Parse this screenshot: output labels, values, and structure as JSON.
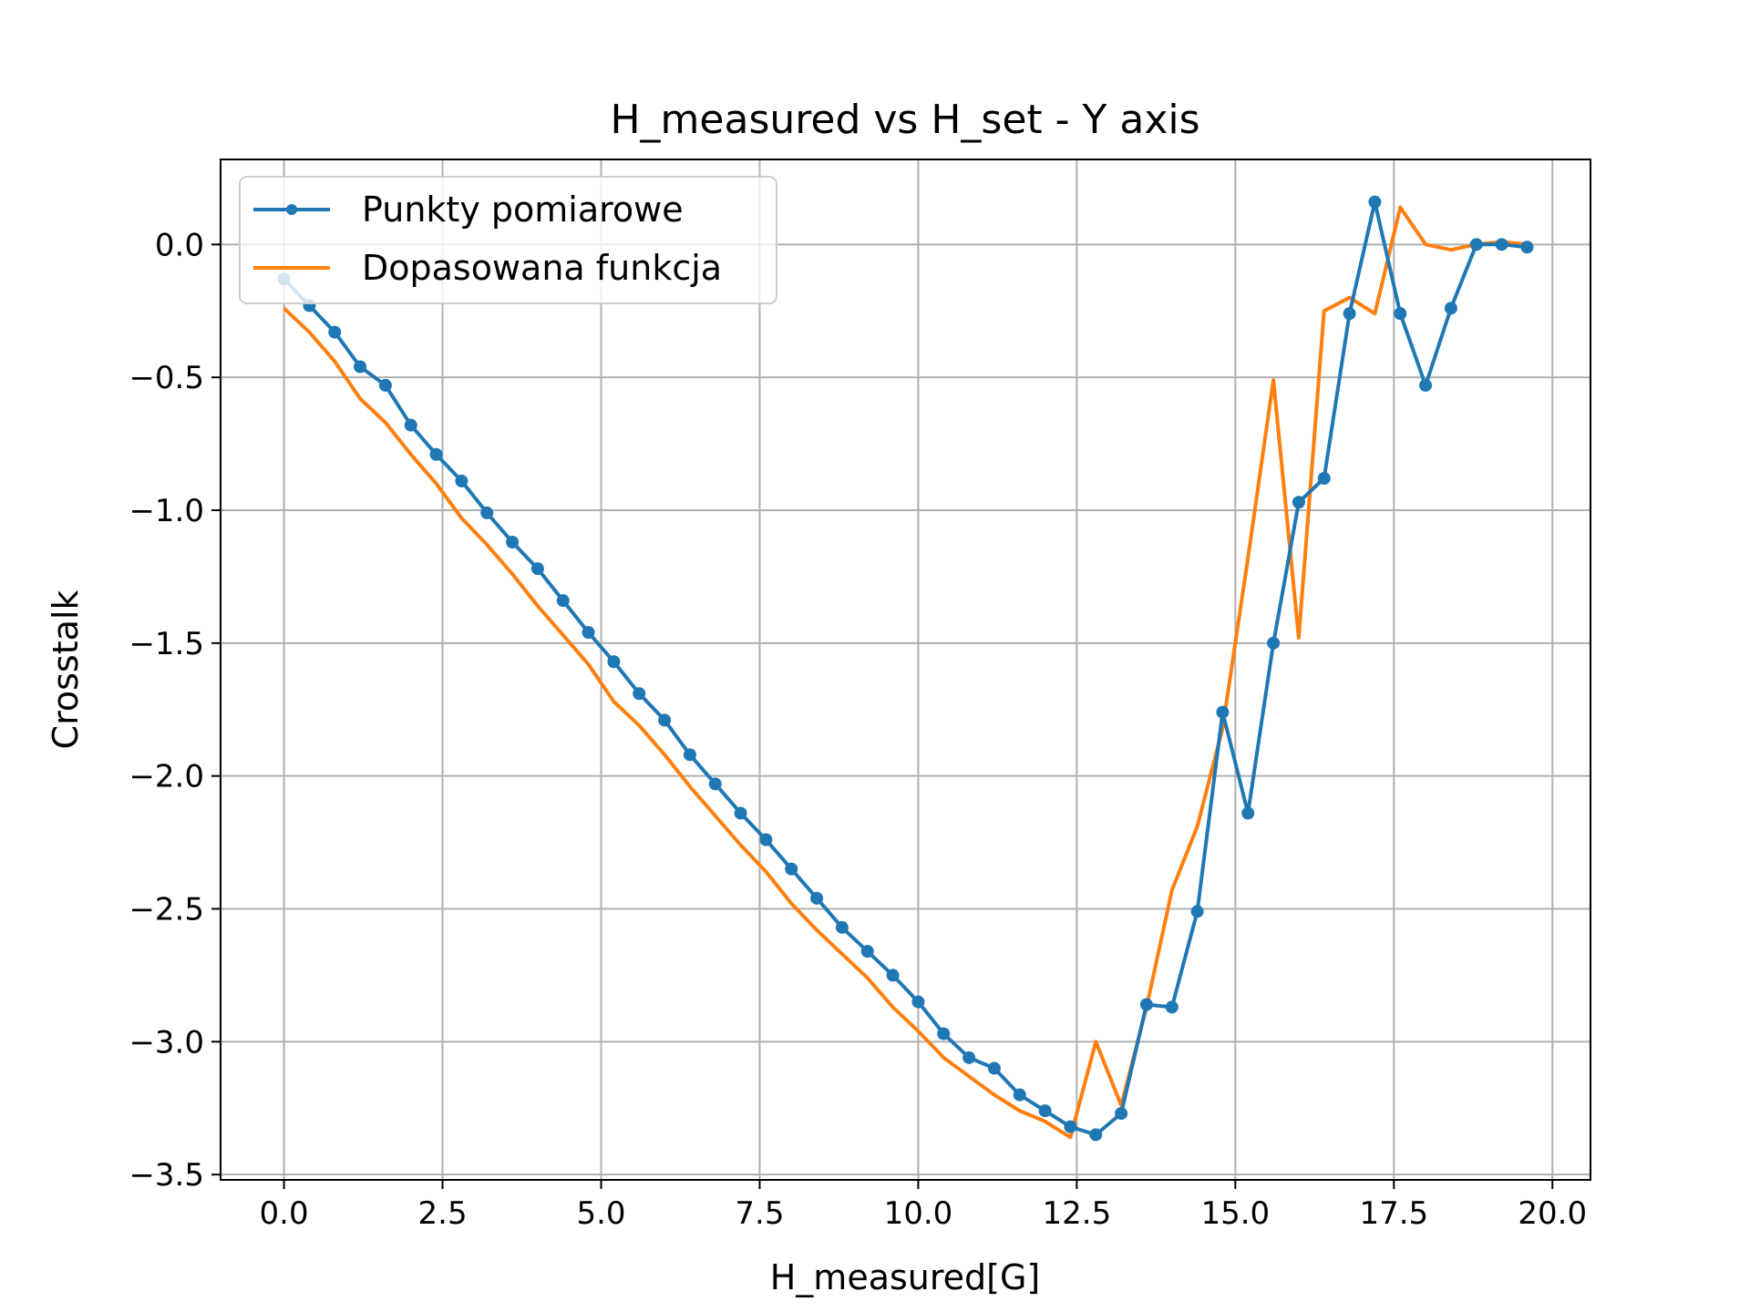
{
  "chart_data": {
    "type": "line",
    "title": "H_measured vs H_set - Y axis",
    "xlabel": "H_measured[G]",
    "ylabel": "Crosstalk",
    "xlim": [
      -1.0,
      20.6
    ],
    "ylim": [
      -3.52,
      0.32
    ],
    "xticks": [
      0.0,
      2.5,
      5.0,
      7.5,
      10.0,
      12.5,
      15.0,
      17.5,
      20.0
    ],
    "xtick_labels": [
      "0.0",
      "2.5",
      "5.0",
      "7.5",
      "10.0",
      "12.5",
      "15.0",
      "17.5",
      "20.0"
    ],
    "yticks": [
      0.0,
      -0.5,
      -1.0,
      -1.5,
      -2.0,
      -2.5,
      -3.0,
      -3.5
    ],
    "ytick_labels": [
      "0.0",
      "−0.5",
      "−1.0",
      "−1.5",
      "−2.0",
      "−2.5",
      "−3.0",
      "−3.5"
    ],
    "grid": true,
    "legend_position": "upper-left",
    "series": [
      {
        "name": "Punkty pomiarowe",
        "color": "#1f77b4",
        "marker": "circle",
        "x": [
          0.0,
          0.4,
          0.8,
          1.2,
          1.6,
          2.0,
          2.4,
          2.8,
          3.2,
          3.6,
          4.0,
          4.4,
          4.8,
          5.2,
          5.6,
          6.0,
          6.4,
          6.8,
          7.2,
          7.6,
          8.0,
          8.4,
          8.8,
          9.2,
          9.6,
          10.0,
          10.4,
          10.8,
          11.2,
          11.6,
          12.0,
          12.4,
          12.8,
          13.2,
          13.6,
          14.0,
          14.4,
          14.8,
          15.2,
          15.6,
          16.0,
          16.4,
          16.8,
          17.2,
          17.6,
          18.0,
          18.4,
          18.8,
          19.2,
          19.6
        ],
        "y": [
          -0.13,
          -0.23,
          -0.33,
          -0.46,
          -0.53,
          -0.68,
          -0.79,
          -0.89,
          -1.01,
          -1.12,
          -1.22,
          -1.34,
          -1.46,
          -1.57,
          -1.69,
          -1.79,
          -1.92,
          -2.03,
          -2.14,
          -2.24,
          -2.35,
          -2.46,
          -2.57,
          -2.66,
          -2.75,
          -2.85,
          -2.97,
          -3.06,
          -3.1,
          -3.2,
          -3.26,
          -3.32,
          -3.35,
          -3.27,
          -2.86,
          -2.87,
          -2.51,
          -1.76,
          -2.14,
          -1.5,
          -0.97,
          -0.88,
          -0.26,
          0.16,
          -0.26,
          -0.53,
          -0.24,
          0.0,
          0.0,
          -0.01
        ]
      },
      {
        "name": "Dopasowana funkcja",
        "color": "#ff7f0e",
        "marker": "none",
        "x": [
          0.0,
          0.4,
          0.8,
          1.2,
          1.6,
          2.0,
          2.4,
          2.8,
          3.2,
          3.6,
          4.0,
          4.4,
          4.8,
          5.2,
          5.6,
          6.0,
          6.4,
          6.8,
          7.2,
          7.6,
          8.0,
          8.4,
          8.8,
          9.2,
          9.6,
          10.0,
          10.4,
          10.8,
          11.2,
          11.6,
          12.0,
          12.4,
          12.8,
          13.2,
          13.6,
          14.0,
          14.4,
          14.8,
          15.2,
          15.6,
          16.0,
          16.4,
          16.8,
          17.2,
          17.6,
          18.0,
          18.4,
          18.8,
          19.2,
          19.6
        ],
        "y": [
          -0.24,
          -0.33,
          -0.44,
          -0.58,
          -0.67,
          -0.79,
          -0.9,
          -1.03,
          -1.13,
          -1.24,
          -1.36,
          -1.47,
          -1.58,
          -1.72,
          -1.81,
          -1.92,
          -2.04,
          -2.15,
          -2.26,
          -2.36,
          -2.48,
          -2.58,
          -2.67,
          -2.76,
          -2.87,
          -2.96,
          -3.06,
          -3.13,
          -3.2,
          -3.26,
          -3.3,
          -3.36,
          -3.0,
          -3.24,
          -2.87,
          -2.43,
          -2.19,
          -1.82,
          -1.18,
          -0.51,
          -1.48,
          -0.25,
          -0.2,
          -0.26,
          0.14,
          0.0,
          -0.02,
          0.0,
          0.01,
          0.0
        ]
      }
    ]
  }
}
